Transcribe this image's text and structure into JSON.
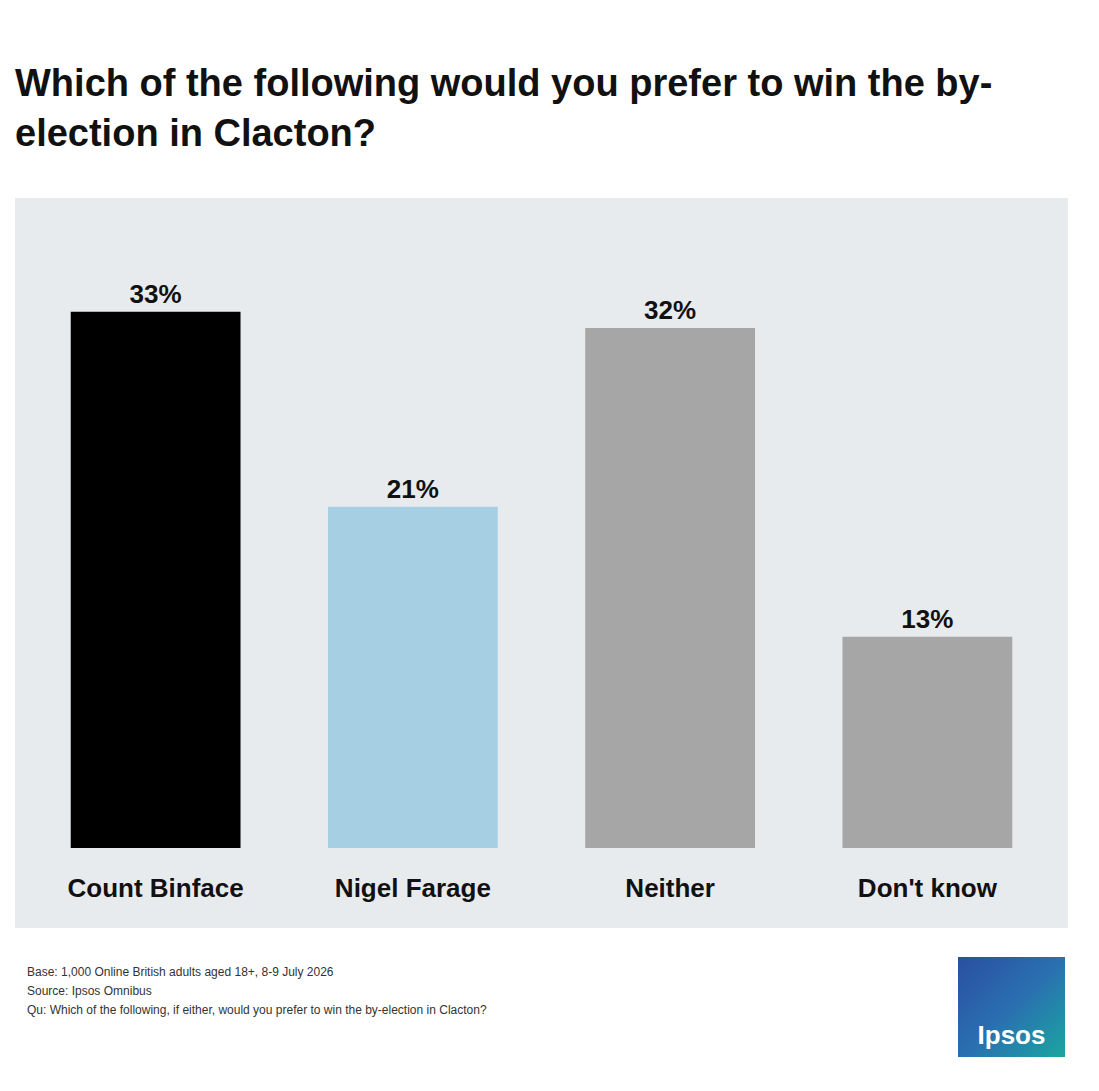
{
  "chart_data": {
    "type": "bar",
    "title": "Which of the following would you prefer to win the by-election in Clacton?",
    "categories": [
      "Count Binface",
      "Nigel Farage",
      "Neither",
      "Don't know"
    ],
    "values": [
      33,
      21,
      32,
      13
    ],
    "value_labels": [
      "33%",
      "21%",
      "32%",
      "13%"
    ],
    "colors": [
      "#000000",
      "#a6cfe3",
      "#a6a6a6",
      "#a6a6a6"
    ],
    "ylim": [
      0,
      40
    ],
    "data_labels": true,
    "tick_labels": "x",
    "grid": false,
    "annotations": [
      "Base: 1,000 Online British adults aged 18+, 8-9 July 2026",
      "Source: Ipsos Omnibus",
      "Qu: Which of the following, if either, would you prefer to win the by-election in Clacton?"
    ],
    "logo": "Ipsos"
  }
}
